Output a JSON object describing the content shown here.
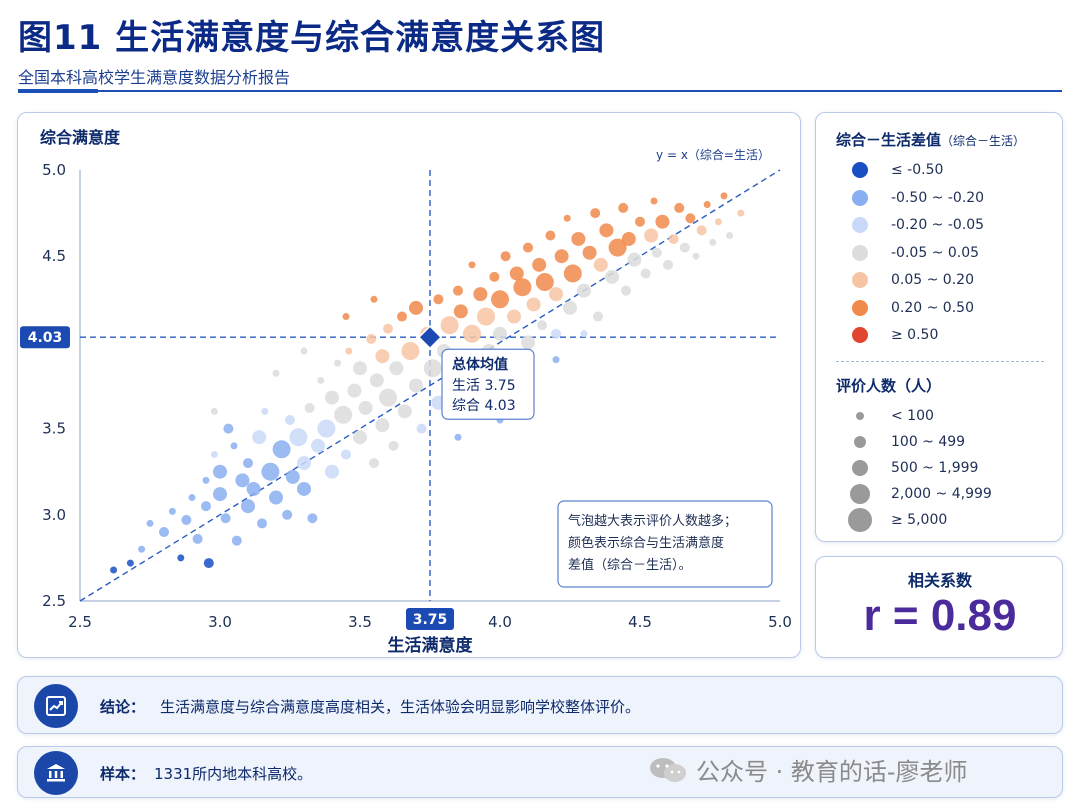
{
  "title": "图11  生活满意度与综合满意度关系图",
  "subtitle": "全国本科高校学生满意度数据分析报告",
  "chart_data": {
    "type": "scatter",
    "xlabel": "生活满意度",
    "ylabel": "综合满意度",
    "xlim": [
      2.5,
      5.0
    ],
    "ylim": [
      2.5,
      5.0
    ],
    "xticks": [
      "2.5",
      "3.0",
      "3.5",
      "4.0",
      "4.5",
      "5.0"
    ],
    "yticks": [
      "2.5",
      "3.0",
      "3.5",
      "4.0",
      "4.5",
      "5.0"
    ],
    "reference_line_label": "y = x（综合=生活）",
    "mean": {
      "x": 3.75,
      "y": 4.03,
      "x_label": "3.75",
      "y_label": "4.03"
    },
    "mean_callout": {
      "title": "总体均值",
      "line1": "生活 3.75",
      "line2": "综合 4.03"
    },
    "note_lines": [
      "气泡越大表示评价人数越多；",
      "颜色表示综合与生活满意度",
      "差值（综合－生活）。"
    ],
    "color_scale": [
      "#1a4fc4",
      "#8aaff0",
      "#c9d9f8",
      "#dcdcdc",
      "#f7c4a3",
      "#f08a4b",
      "#e0462f"
    ],
    "points": [
      [
        2.62,
        2.68,
        1,
        0
      ],
      [
        2.68,
        2.72,
        1,
        0
      ],
      [
        2.72,
        2.8,
        1,
        1
      ],
      [
        2.75,
        2.95,
        1,
        1
      ],
      [
        2.8,
        2.9,
        2,
        1
      ],
      [
        2.83,
        3.02,
        1,
        1
      ],
      [
        2.86,
        2.75,
        1,
        0
      ],
      [
        2.9,
        3.1,
        1,
        1
      ],
      [
        2.88,
        2.97,
        2,
        1
      ],
      [
        2.92,
        2.86,
        2,
        1
      ],
      [
        2.95,
        3.2,
        1,
        1
      ],
      [
        2.95,
        3.05,
        2,
        1
      ],
      [
        2.96,
        2.72,
        2,
        0
      ],
      [
        2.98,
        3.35,
        1,
        2
      ],
      [
        3.0,
        3.25,
        3,
        1
      ],
      [
        3.0,
        3.12,
        3,
        1
      ],
      [
        3.02,
        2.98,
        2,
        1
      ],
      [
        3.03,
        3.5,
        2,
        1
      ],
      [
        3.05,
        3.4,
        1,
        1
      ],
      [
        3.06,
        2.85,
        2,
        1
      ],
      [
        3.08,
        3.2,
        3,
        1
      ],
      [
        3.1,
        3.05,
        3,
        1
      ],
      [
        3.1,
        3.3,
        2,
        1
      ],
      [
        3.12,
        3.15,
        3,
        1
      ],
      [
        3.14,
        3.45,
        3,
        2
      ],
      [
        3.15,
        2.95,
        2,
        1
      ],
      [
        3.16,
        3.6,
        1,
        2
      ],
      [
        3.18,
        3.25,
        4,
        1
      ],
      [
        3.2,
        3.1,
        3,
        1
      ],
      [
        3.22,
        3.38,
        4,
        1
      ],
      [
        3.24,
        3.0,
        2,
        1
      ],
      [
        3.25,
        3.55,
        2,
        2
      ],
      [
        3.26,
        3.22,
        3,
        1
      ],
      [
        3.28,
        3.45,
        4,
        2
      ],
      [
        3.3,
        3.15,
        3,
        1
      ],
      [
        3.3,
        3.3,
        3,
        2
      ],
      [
        3.32,
        3.62,
        2,
        3
      ],
      [
        3.33,
        2.98,
        2,
        1
      ],
      [
        3.35,
        3.4,
        3,
        2
      ],
      [
        3.36,
        3.78,
        1,
        3
      ],
      [
        3.38,
        3.5,
        4,
        2
      ],
      [
        3.4,
        3.25,
        3,
        2
      ],
      [
        3.4,
        3.68,
        3,
        3
      ],
      [
        3.42,
        3.88,
        1,
        3
      ],
      [
        3.44,
        3.58,
        4,
        3
      ],
      [
        3.45,
        3.35,
        2,
        2
      ],
      [
        3.46,
        3.95,
        1,
        4
      ],
      [
        3.48,
        3.72,
        3,
        3
      ],
      [
        3.5,
        3.45,
        3,
        3
      ],
      [
        3.5,
        3.85,
        3,
        3
      ],
      [
        3.52,
        3.62,
        3,
        3
      ],
      [
        3.54,
        4.02,
        2,
        4
      ],
      [
        3.55,
        3.3,
        2,
        3
      ],
      [
        3.56,
        3.78,
        3,
        3
      ],
      [
        3.58,
        3.52,
        3,
        3
      ],
      [
        3.58,
        3.92,
        3,
        4
      ],
      [
        3.6,
        3.68,
        4,
        3
      ],
      [
        3.6,
        4.08,
        2,
        4
      ],
      [
        3.62,
        3.4,
        2,
        3
      ],
      [
        3.63,
        3.85,
        3,
        3
      ],
      [
        3.65,
        4.15,
        2,
        5
      ],
      [
        3.66,
        3.6,
        3,
        3
      ],
      [
        3.68,
        3.95,
        4,
        4
      ],
      [
        3.7,
        3.75,
        3,
        3
      ],
      [
        3.7,
        4.2,
        3,
        5
      ],
      [
        3.72,
        3.5,
        2,
        2
      ],
      [
        3.74,
        4.05,
        3,
        4
      ],
      [
        3.76,
        3.85,
        4,
        3
      ],
      [
        3.78,
        4.25,
        2,
        5
      ],
      [
        3.78,
        3.65,
        3,
        2
      ],
      [
        3.8,
        3.95,
        3,
        3
      ],
      [
        3.82,
        4.1,
        4,
        4
      ],
      [
        3.84,
        3.75,
        2,
        2
      ],
      [
        3.85,
        4.3,
        2,
        5
      ],
      [
        3.86,
        4.18,
        3,
        5
      ],
      [
        3.88,
        3.9,
        3,
        3
      ],
      [
        3.9,
        4.05,
        4,
        4
      ],
      [
        3.9,
        4.45,
        1,
        5
      ],
      [
        3.92,
        3.7,
        2,
        2
      ],
      [
        3.93,
        4.28,
        3,
        5
      ],
      [
        3.95,
        4.15,
        4,
        4
      ],
      [
        3.96,
        3.95,
        3,
        3
      ],
      [
        3.98,
        4.38,
        2,
        5
      ],
      [
        4.0,
        4.05,
        3,
        3
      ],
      [
        4.0,
        4.25,
        4,
        5
      ],
      [
        4.02,
        4.5,
        2,
        5
      ],
      [
        4.04,
        3.82,
        2,
        2
      ],
      [
        4.05,
        4.15,
        3,
        4
      ],
      [
        4.06,
        4.4,
        3,
        5
      ],
      [
        4.08,
        4.32,
        4,
        5
      ],
      [
        4.1,
        4.0,
        3,
        3
      ],
      [
        4.1,
        4.55,
        2,
        5
      ],
      [
        4.12,
        4.22,
        3,
        4
      ],
      [
        4.14,
        4.45,
        3,
        5
      ],
      [
        4.15,
        4.1,
        2,
        3
      ],
      [
        4.16,
        4.35,
        4,
        5
      ],
      [
        4.18,
        4.62,
        2,
        5
      ],
      [
        4.2,
        4.28,
        3,
        4
      ],
      [
        4.2,
        4.05,
        2,
        2
      ],
      [
        4.22,
        4.5,
        3,
        5
      ],
      [
        4.24,
        4.72,
        1,
        5
      ],
      [
        4.25,
        4.2,
        3,
        3
      ],
      [
        4.26,
        4.4,
        4,
        5
      ],
      [
        4.28,
        4.6,
        3,
        5
      ],
      [
        4.3,
        4.3,
        3,
        3
      ],
      [
        4.32,
        4.52,
        3,
        5
      ],
      [
        4.34,
        4.75,
        2,
        5
      ],
      [
        4.35,
        4.15,
        2,
        3
      ],
      [
        4.36,
        4.45,
        3,
        4
      ],
      [
        4.38,
        4.65,
        3,
        5
      ],
      [
        4.4,
        4.38,
        3,
        3
      ],
      [
        4.42,
        4.55,
        4,
        5
      ],
      [
        4.44,
        4.78,
        2,
        5
      ],
      [
        4.45,
        4.3,
        2,
        3
      ],
      [
        4.46,
        4.6,
        3,
        5
      ],
      [
        4.48,
        4.48,
        3,
        3
      ],
      [
        4.5,
        4.7,
        2,
        5
      ],
      [
        4.52,
        4.4,
        2,
        3
      ],
      [
        4.54,
        4.62,
        3,
        4
      ],
      [
        4.55,
        4.82,
        1,
        5
      ],
      [
        4.56,
        4.52,
        2,
        3
      ],
      [
        4.58,
        4.7,
        3,
        5
      ],
      [
        4.6,
        4.45,
        2,
        3
      ],
      [
        4.62,
        4.6,
        2,
        4
      ],
      [
        4.64,
        4.78,
        2,
        5
      ],
      [
        4.66,
        4.55,
        2,
        3
      ],
      [
        4.68,
        4.72,
        2,
        5
      ],
      [
        4.7,
        4.5,
        1,
        3
      ],
      [
        4.72,
        4.65,
        2,
        4
      ],
      [
        4.74,
        4.8,
        1,
        5
      ],
      [
        4.76,
        4.58,
        1,
        3
      ],
      [
        4.78,
        4.7,
        1,
        4
      ],
      [
        4.8,
        4.85,
        1,
        5
      ],
      [
        4.82,
        4.62,
        1,
        3
      ],
      [
        4.86,
        4.75,
        1,
        4
      ],
      [
        4.1,
        3.75,
        1,
        1
      ],
      [
        3.95,
        3.6,
        1,
        1
      ],
      [
        4.2,
        3.9,
        1,
        1
      ],
      [
        3.45,
        4.15,
        1,
        5
      ],
      [
        3.3,
        3.95,
        1,
        3
      ],
      [
        3.2,
        3.82,
        1,
        3
      ],
      [
        2.98,
        3.6,
        1,
        3
      ],
      [
        3.55,
        4.25,
        1,
        5
      ],
      [
        4.3,
        4.05,
        1,
        2
      ],
      [
        3.85,
        3.45,
        1,
        1
      ],
      [
        4.0,
        3.55,
        1,
        1
      ]
    ]
  },
  "legend": {
    "diff_title": "综合－生活差值",
    "diff_title_small": "（综合－生活）",
    "diff_items": [
      "≤ -0.50",
      "-0.50 ~ -0.20",
      "-0.20 ~ -0.05",
      "-0.05 ~ 0.05",
      "0.05 ~ 0.20",
      "0.20 ~ 0.50",
      "≥ 0.50"
    ],
    "size_title": "评价人数（人）",
    "size_items": [
      "< 100",
      "100 ~ 499",
      "500 ~ 1,999",
      "2,000 ~ 4,999",
      "≥ 5,000"
    ]
  },
  "correlation": {
    "title": "相关系数",
    "value": "r = 0.89"
  },
  "conclusion": {
    "label": "结论：",
    "text": "生活满意度与综合满意度高度相关，生活体验会明显影响学校整体评价。"
  },
  "sample": {
    "label": "样本：",
    "text": "1331所内地本科高校。"
  },
  "watermark": "公众号 · 教育的话-廖老师"
}
